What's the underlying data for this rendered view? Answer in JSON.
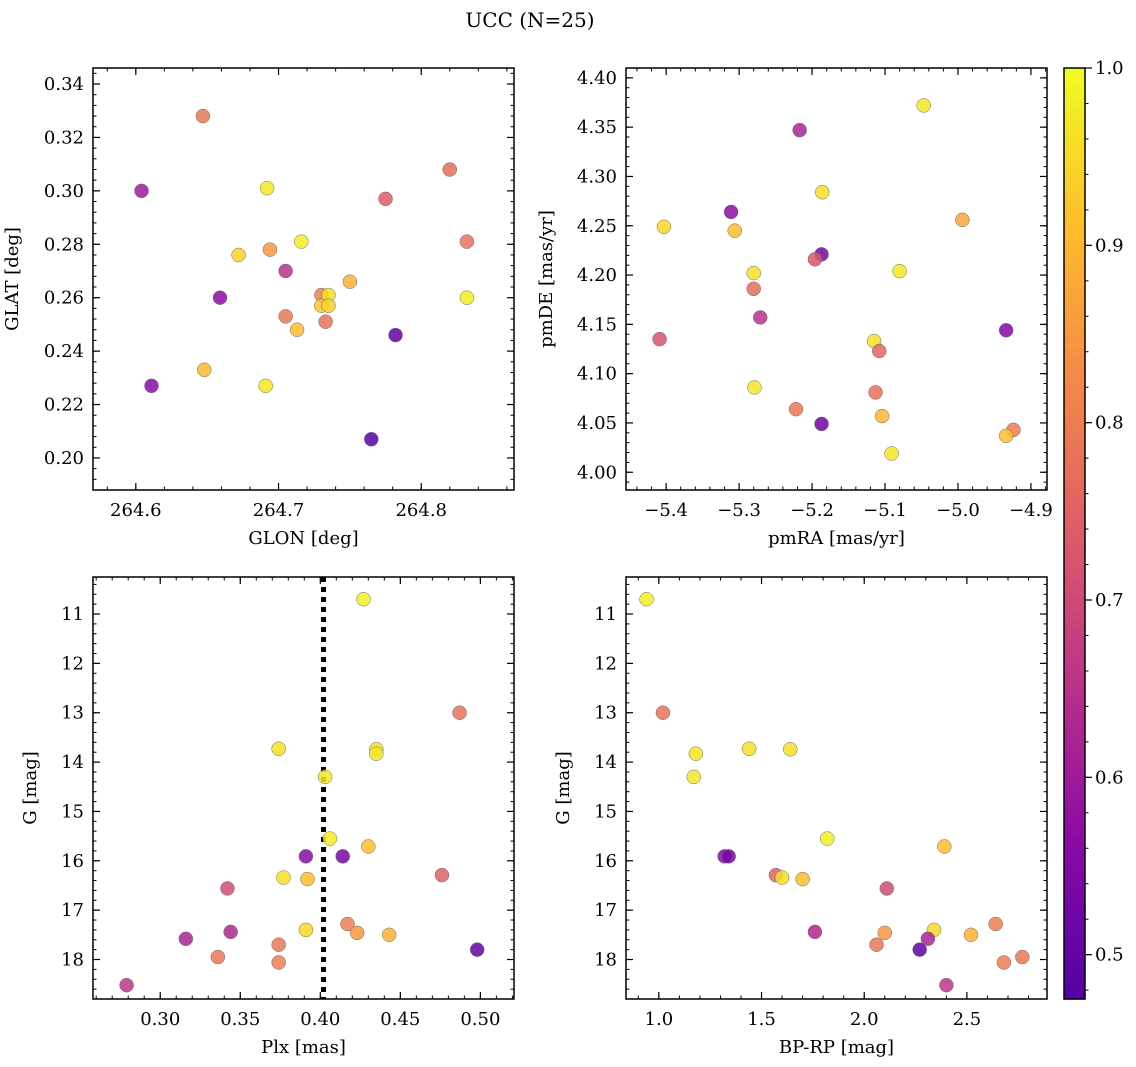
{
  "title": "UCC (N=25)",
  "colorbar": {
    "range": [
      0.475,
      1.0
    ],
    "ticks": [
      0.5,
      0.6,
      0.7,
      0.8,
      0.9,
      1.0
    ],
    "tick_labels": [
      "0.5",
      "0.6",
      "0.7",
      "0.8",
      "0.9",
      "1.0"
    ],
    "colormap": "plasma"
  },
  "chart_data": [
    {
      "type": "scatter",
      "id": "glon-glat",
      "xlabel": "GLON [deg]",
      "ylabel": "GLAT [deg]",
      "xlim": [
        264.57,
        264.865
      ],
      "ylim": [
        0.188,
        0.346
      ],
      "x_ticks": [
        264.6,
        264.7,
        264.8
      ],
      "x_tick_labels": [
        "264.6",
        "264.7",
        "264.8"
      ],
      "y_ticks": [
        0.2,
        0.22,
        0.24,
        0.26,
        0.28,
        0.3,
        0.32,
        0.34
      ],
      "y_tick_labels": [
        "0.20",
        "0.22",
        "0.24",
        "0.26",
        "0.28",
        "0.30",
        "0.32",
        "0.34"
      ],
      "points": [
        {
          "x": 264.647,
          "y": 0.328,
          "c": 0.79
        },
        {
          "x": 264.604,
          "y": 0.3,
          "c": 0.6
        },
        {
          "x": 264.692,
          "y": 0.301,
          "c": 0.97
        },
        {
          "x": 264.82,
          "y": 0.308,
          "c": 0.77
        },
        {
          "x": 264.775,
          "y": 0.297,
          "c": 0.74
        },
        {
          "x": 264.832,
          "y": 0.281,
          "c": 0.78
        },
        {
          "x": 264.716,
          "y": 0.281,
          "c": 0.98
        },
        {
          "x": 264.694,
          "y": 0.278,
          "c": 0.85
        },
        {
          "x": 264.672,
          "y": 0.276,
          "c": 0.94
        },
        {
          "x": 264.705,
          "y": 0.27,
          "c": 0.65
        },
        {
          "x": 264.75,
          "y": 0.266,
          "c": 0.89
        },
        {
          "x": 264.659,
          "y": 0.26,
          "c": 0.57
        },
        {
          "x": 264.73,
          "y": 0.261,
          "c": 0.8
        },
        {
          "x": 264.735,
          "y": 0.261,
          "c": 0.96
        },
        {
          "x": 264.832,
          "y": 0.26,
          "c": 0.98
        },
        {
          "x": 264.73,
          "y": 0.257,
          "c": 0.92
        },
        {
          "x": 264.735,
          "y": 0.257,
          "c": 0.94
        },
        {
          "x": 264.705,
          "y": 0.253,
          "c": 0.79
        },
        {
          "x": 264.733,
          "y": 0.251,
          "c": 0.78
        },
        {
          "x": 264.713,
          "y": 0.248,
          "c": 0.91
        },
        {
          "x": 264.782,
          "y": 0.246,
          "c": 0.5
        },
        {
          "x": 264.648,
          "y": 0.233,
          "c": 0.9
        },
        {
          "x": 264.691,
          "y": 0.227,
          "c": 0.97
        },
        {
          "x": 264.611,
          "y": 0.227,
          "c": 0.56
        },
        {
          "x": 264.765,
          "y": 0.207,
          "c": 0.48
        }
      ]
    },
    {
      "type": "scatter",
      "id": "pmra-pmde",
      "xlabel": "pmRA [mas/yr]",
      "ylabel": "pmDE [mas/yr]",
      "xlim": [
        -5.455,
        -4.878
      ],
      "ylim": [
        3.982,
        4.41
      ],
      "x_ticks": [
        -5.4,
        -5.3,
        -5.2,
        -5.1,
        -5.0,
        -4.9
      ],
      "x_tick_labels": [
        "−5.4",
        "−5.3",
        "−5.2",
        "−5.1",
        "−5.0",
        "−4.9"
      ],
      "y_ticks": [
        4.0,
        4.05,
        4.1,
        4.15,
        4.2,
        4.25,
        4.3,
        4.35,
        4.4
      ],
      "y_tick_labels": [
        "4.00",
        "4.05",
        "4.10",
        "4.15",
        "4.20",
        "4.25",
        "4.30",
        "4.35",
        "4.40"
      ],
      "points": [
        {
          "x": -5.047,
          "y": 4.372,
          "c": 0.97
        },
        {
          "x": -5.217,
          "y": 4.347,
          "c": 0.62
        },
        {
          "x": -5.186,
          "y": 4.284,
          "c": 0.96
        },
        {
          "x": -5.311,
          "y": 4.264,
          "c": 0.57
        },
        {
          "x": -4.994,
          "y": 4.256,
          "c": 0.87
        },
        {
          "x": -5.403,
          "y": 4.249,
          "c": 0.95
        },
        {
          "x": -5.306,
          "y": 4.245,
          "c": 0.91
        },
        {
          "x": -5.187,
          "y": 4.221,
          "c": 0.53
        },
        {
          "x": -5.196,
          "y": 4.216,
          "c": 0.73
        },
        {
          "x": -5.08,
          "y": 4.204,
          "c": 0.97
        },
        {
          "x": -5.28,
          "y": 4.202,
          "c": 0.96
        },
        {
          "x": -5.28,
          "y": 4.186,
          "c": 0.77
        },
        {
          "x": -5.271,
          "y": 4.157,
          "c": 0.65
        },
        {
          "x": -4.934,
          "y": 4.144,
          "c": 0.55
        },
        {
          "x": -5.409,
          "y": 4.135,
          "c": 0.72
        },
        {
          "x": -5.115,
          "y": 4.133,
          "c": 0.96
        },
        {
          "x": -5.108,
          "y": 4.123,
          "c": 0.76
        },
        {
          "x": -5.279,
          "y": 4.086,
          "c": 0.97
        },
        {
          "x": -5.113,
          "y": 4.081,
          "c": 0.78
        },
        {
          "x": -5.222,
          "y": 4.064,
          "c": 0.79
        },
        {
          "x": -5.104,
          "y": 4.057,
          "c": 0.9
        },
        {
          "x": -5.187,
          "y": 4.049,
          "c": 0.52
        },
        {
          "x": -4.924,
          "y": 4.043,
          "c": 0.8
        },
        {
          "x": -4.934,
          "y": 4.037,
          "c": 0.91
        },
        {
          "x": -5.091,
          "y": 4.019,
          "c": 0.97
        }
      ]
    },
    {
      "type": "scatter",
      "id": "plx-g",
      "xlabel": "Plx [mas]",
      "ylabel": "G [mag]",
      "xlim": [
        0.258,
        0.521
      ],
      "ylim": [
        18.8,
        10.25
      ],
      "y_inverted": true,
      "vline": {
        "x": 0.402,
        "style": "dotted"
      },
      "x_ticks": [
        0.3,
        0.35,
        0.4,
        0.45,
        0.5
      ],
      "x_tick_labels": [
        "0.30",
        "0.35",
        "0.40",
        "0.45",
        "0.50"
      ],
      "y_ticks": [
        11,
        12,
        13,
        14,
        15,
        16,
        17,
        18
      ],
      "y_tick_labels": [
        "11",
        "12",
        "13",
        "14",
        "15",
        "16",
        "17",
        "18"
      ],
      "points": [
        {
          "x": 0.427,
          "y": 10.7,
          "c": 0.98
        },
        {
          "x": 0.487,
          "y": 13.0,
          "c": 0.78
        },
        {
          "x": 0.374,
          "y": 13.73,
          "c": 0.96
        },
        {
          "x": 0.435,
          "y": 13.74,
          "c": 0.96
        },
        {
          "x": 0.435,
          "y": 13.83,
          "c": 0.97
        },
        {
          "x": 0.403,
          "y": 14.3,
          "c": 0.97
        },
        {
          "x": 0.406,
          "y": 15.55,
          "c": 0.98
        },
        {
          "x": 0.43,
          "y": 15.71,
          "c": 0.91
        },
        {
          "x": 0.391,
          "y": 15.91,
          "c": 0.56
        },
        {
          "x": 0.414,
          "y": 15.91,
          "c": 0.53
        },
        {
          "x": 0.476,
          "y": 16.29,
          "c": 0.75
        },
        {
          "x": 0.377,
          "y": 16.34,
          "c": 0.96
        },
        {
          "x": 0.392,
          "y": 16.37,
          "c": 0.91
        },
        {
          "x": 0.342,
          "y": 16.56,
          "c": 0.71
        },
        {
          "x": 0.417,
          "y": 17.28,
          "c": 0.8
        },
        {
          "x": 0.391,
          "y": 17.4,
          "c": 0.95
        },
        {
          "x": 0.344,
          "y": 17.44,
          "c": 0.63
        },
        {
          "x": 0.423,
          "y": 17.46,
          "c": 0.85
        },
        {
          "x": 0.443,
          "y": 17.5,
          "c": 0.89
        },
        {
          "x": 0.316,
          "y": 17.58,
          "c": 0.62
        },
        {
          "x": 0.374,
          "y": 17.7,
          "c": 0.79
        },
        {
          "x": 0.498,
          "y": 17.8,
          "c": 0.5
        },
        {
          "x": 0.336,
          "y": 17.95,
          "c": 0.79
        },
        {
          "x": 0.374,
          "y": 18.06,
          "c": 0.8
        },
        {
          "x": 0.279,
          "y": 18.52,
          "c": 0.66
        }
      ]
    },
    {
      "type": "scatter",
      "id": "bprp-g",
      "xlabel": "BP-RP [mag]",
      "ylabel": "G [mag]",
      "xlim": [
        0.84,
        2.89
      ],
      "ylim": [
        18.8,
        10.25
      ],
      "y_inverted": true,
      "x_ticks": [
        1.0,
        1.5,
        2.0,
        2.5
      ],
      "x_tick_labels": [
        "1.0",
        "1.5",
        "2.0",
        "2.5"
      ],
      "y_ticks": [
        11,
        12,
        13,
        14,
        15,
        16,
        17,
        18
      ],
      "y_tick_labels": [
        "11",
        "12",
        "13",
        "14",
        "15",
        "16",
        "17",
        "18"
      ],
      "points": [
        {
          "x": 0.94,
          "y": 10.7,
          "c": 0.98
        },
        {
          "x": 1.02,
          "y": 13.0,
          "c": 0.78
        },
        {
          "x": 1.44,
          "y": 13.73,
          "c": 0.96
        },
        {
          "x": 1.64,
          "y": 13.74,
          "c": 0.96
        },
        {
          "x": 1.18,
          "y": 13.83,
          "c": 0.97
        },
        {
          "x": 1.17,
          "y": 14.3,
          "c": 0.97
        },
        {
          "x": 1.82,
          "y": 15.55,
          "c": 0.98
        },
        {
          "x": 2.39,
          "y": 15.71,
          "c": 0.91
        },
        {
          "x": 1.32,
          "y": 15.91,
          "c": 0.56
        },
        {
          "x": 1.34,
          "y": 15.91,
          "c": 0.53
        },
        {
          "x": 1.57,
          "y": 16.29,
          "c": 0.75
        },
        {
          "x": 1.6,
          "y": 16.34,
          "c": 0.96
        },
        {
          "x": 1.7,
          "y": 16.37,
          "c": 0.91
        },
        {
          "x": 2.11,
          "y": 16.56,
          "c": 0.71
        },
        {
          "x": 2.64,
          "y": 17.28,
          "c": 0.8
        },
        {
          "x": 2.34,
          "y": 17.4,
          "c": 0.95
        },
        {
          "x": 1.76,
          "y": 17.44,
          "c": 0.63
        },
        {
          "x": 2.1,
          "y": 17.46,
          "c": 0.85
        },
        {
          "x": 2.52,
          "y": 17.5,
          "c": 0.89
        },
        {
          "x": 2.31,
          "y": 17.58,
          "c": 0.62
        },
        {
          "x": 2.06,
          "y": 17.7,
          "c": 0.79
        },
        {
          "x": 2.27,
          "y": 17.8,
          "c": 0.5
        },
        {
          "x": 2.77,
          "y": 17.95,
          "c": 0.79
        },
        {
          "x": 2.68,
          "y": 18.06,
          "c": 0.8
        },
        {
          "x": 2.4,
          "y": 18.52,
          "c": 0.66
        }
      ]
    }
  ]
}
